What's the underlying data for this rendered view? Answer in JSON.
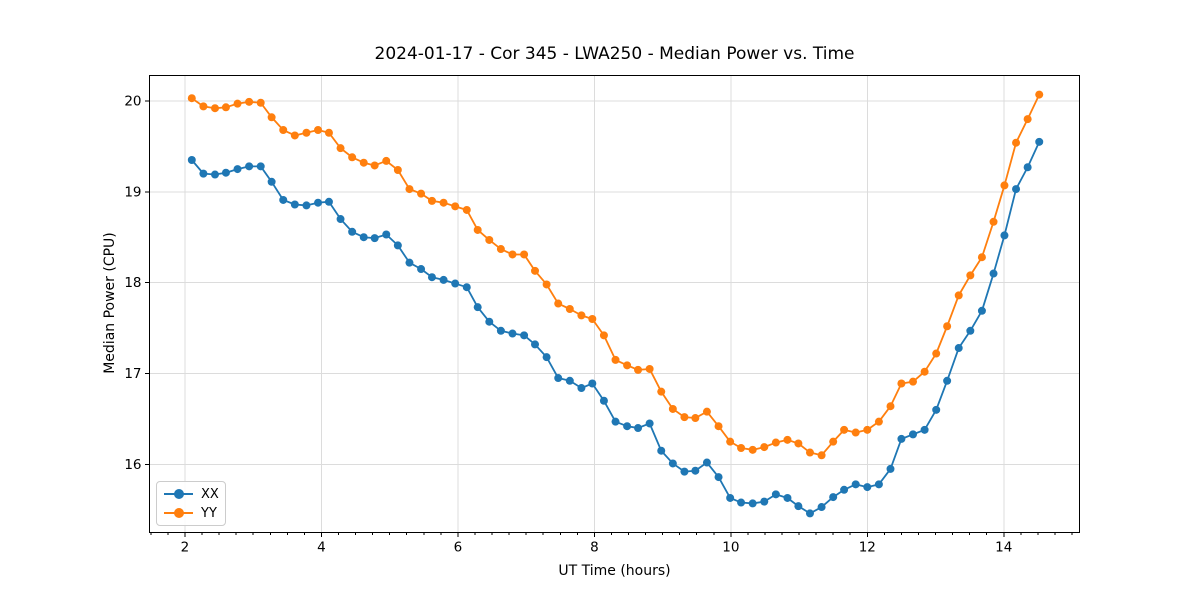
{
  "chart_data": {
    "type": "line",
    "title": "2024-01-17 - Cor 345 - LWA250 - Median Power vs. Time",
    "xlabel": "UT Time (hours)",
    "ylabel": "Median Power (CPU)",
    "xlim": [
      1.48,
      15.11
    ],
    "ylim": [
      15.25,
      20.28
    ],
    "x_ticks": [
      2,
      4,
      6,
      8,
      10,
      12,
      14
    ],
    "x_minor_tick_step": 0.25,
    "y_ticks": [
      16,
      17,
      18,
      19,
      20
    ],
    "grid": true,
    "legend_position": "lower left",
    "marker": "o",
    "x": [
      2.1,
      2.27,
      2.44,
      2.6,
      2.77,
      2.94,
      3.11,
      3.27,
      3.44,
      3.61,
      3.78,
      3.95,
      4.11,
      4.28,
      4.45,
      4.62,
      4.78,
      4.95,
      5.12,
      5.29,
      5.46,
      5.62,
      5.79,
      5.96,
      6.13,
      6.29,
      6.46,
      6.63,
      6.8,
      6.97,
      7.13,
      7.3,
      7.47,
      7.64,
      7.81,
      7.97,
      8.14,
      8.31,
      8.48,
      8.64,
      8.81,
      8.98,
      9.15,
      9.32,
      9.48,
      9.65,
      9.82,
      9.99,
      10.15,
      10.32,
      10.49,
      10.66,
      10.83,
      10.99,
      11.16,
      11.33,
      11.5,
      11.66,
      11.83,
      12.0,
      12.17,
      12.34,
      12.5,
      12.67,
      12.84,
      13.01,
      13.17,
      13.34,
      13.51,
      13.68,
      13.85,
      14.01,
      14.18,
      14.35,
      14.52
    ],
    "series": [
      {
        "name": "XX",
        "color": "#1f77b4",
        "values": [
          19.35,
          19.2,
          19.19,
          19.21,
          19.25,
          19.28,
          19.28,
          19.11,
          18.91,
          18.86,
          18.85,
          18.88,
          18.89,
          18.7,
          18.56,
          18.5,
          18.49,
          18.53,
          18.41,
          18.22,
          18.15,
          18.06,
          18.03,
          17.99,
          17.95,
          17.73,
          17.57,
          17.47,
          17.44,
          17.42,
          17.32,
          17.18,
          16.95,
          16.92,
          16.84,
          16.89,
          16.7,
          16.47,
          16.42,
          16.4,
          16.45,
          16.15,
          16.01,
          15.92,
          15.93,
          16.02,
          15.86,
          15.63,
          15.58,
          15.57,
          15.59,
          15.67,
          15.63,
          15.54,
          15.46,
          15.53,
          15.64,
          15.72,
          15.78,
          15.75,
          15.78,
          15.95,
          16.28,
          16.33,
          16.38,
          16.6,
          16.92,
          17.28,
          17.47,
          17.69,
          18.1,
          18.52,
          19.03,
          19.27,
          19.55
        ]
      },
      {
        "name": "YY",
        "color": "#ff7f0e",
        "values": [
          20.03,
          19.94,
          19.92,
          19.93,
          19.97,
          19.99,
          19.98,
          19.82,
          19.68,
          19.62,
          19.65,
          19.68,
          19.65,
          19.48,
          19.38,
          19.32,
          19.29,
          19.34,
          19.24,
          19.03,
          18.98,
          18.9,
          18.88,
          18.84,
          18.8,
          18.58,
          18.47,
          18.37,
          18.31,
          18.31,
          18.13,
          17.98,
          17.77,
          17.71,
          17.64,
          17.6,
          17.42,
          17.15,
          17.09,
          17.04,
          17.05,
          16.8,
          16.61,
          16.52,
          16.51,
          16.58,
          16.42,
          16.25,
          16.18,
          16.16,
          16.19,
          16.24,
          16.27,
          16.23,
          16.13,
          16.1,
          16.25,
          16.38,
          16.35,
          16.38,
          16.47,
          16.64,
          16.89,
          16.91,
          17.02,
          17.22,
          17.52,
          17.86,
          18.08,
          18.28,
          18.67,
          19.07,
          19.54,
          19.8,
          20.07
        ]
      }
    ]
  },
  "styles": {
    "background": "#ffffff",
    "grid_color": "#dcdcdc",
    "spine_color": "#000000",
    "tick_color": "#000000",
    "text_color": "#000000",
    "legend_border": "#cccccc"
  }
}
